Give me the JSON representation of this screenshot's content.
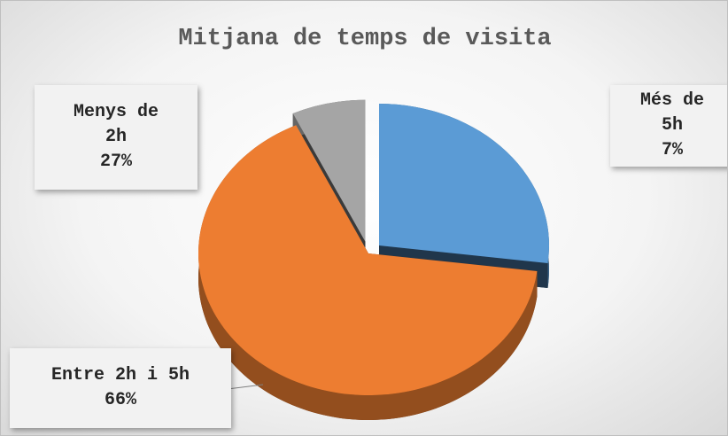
{
  "chart_data": {
    "type": "pie",
    "title": "Mitjana de temps de visita",
    "categories": [
      "Menys de 2h",
      "Entre 2h i 5h",
      "Més de 5h"
    ],
    "values": [
      27,
      66,
      7
    ],
    "value_labels": [
      "27%",
      "66%",
      "7%"
    ],
    "colors": [
      "#5b9bd5",
      "#ed7d31",
      "#a5a5a5"
    ]
  }
}
